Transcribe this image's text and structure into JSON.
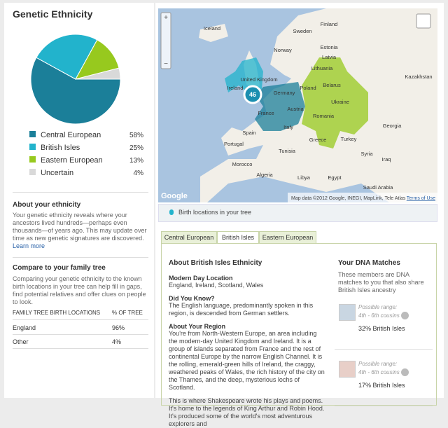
{
  "chart_data": {
    "type": "pie",
    "title": "Genetic Ethnicity",
    "categories": [
      "Central European",
      "British Isles",
      "Eastern European",
      "Uncertain"
    ],
    "values": [
      58,
      25,
      13,
      4
    ],
    "value_labels": [
      "58%",
      "25%",
      "13%",
      "4%"
    ],
    "colors": [
      "#1b7f99",
      "#22b3cc",
      "#97c91e",
      "#d9d9d9"
    ]
  },
  "about": {
    "title": "About your ethnicity",
    "text": "Your genetic ethnicity reveals where your ancestors lived hundreds—perhaps even thousands—of years ago. This may update over time as new genetic signatures are discovered.",
    "link": "Learn more"
  },
  "compare": {
    "title": "Compare to your family tree",
    "text": "Comparing your genetic ethnicity to the known birth locations in your tree can help fill in gaps, find potential relatives and offer clues on people to look.",
    "table": {
      "header": [
        "FAMILY TREE BIRTH LOCATIONS",
        "% OF TREE"
      ],
      "rows": [
        [
          "England",
          "96%"
        ],
        [
          "Other",
          "4%"
        ]
      ]
    }
  },
  "map": {
    "labels": [
      "Iceland",
      "Sweden",
      "Finland",
      "Norway",
      "Estonia",
      "Latvia",
      "Lithuania",
      "United Kingdom",
      "Ireland",
      "Germany",
      "Poland",
      "Belarus",
      "Ukraine",
      "France",
      "Austria",
      "Romania",
      "Italy",
      "Spain",
      "Portugal",
      "Greece",
      "Turkey",
      "Morocco",
      "Algeria",
      "Tunisia",
      "Libya",
      "Egypt",
      "Syria",
      "Iraq",
      "Kazakhstan",
      "Georgia",
      "Saudi Arabia"
    ],
    "marker": "46",
    "logo": "Google",
    "attribution": "Map data ©2012 Google, INEGI, MapLink, Tele Atlas",
    "terms": "Terms of Use",
    "caption": "Birth locations in your tree"
  },
  "tabs": [
    "Central European",
    "British Isles",
    "Eastern European"
  ],
  "detail": {
    "title": "About British Isles Ethnicity",
    "sections": [
      {
        "heading": "Modern Day Location",
        "text": "England, Ireland, Scotland, Wales"
      },
      {
        "heading": "Did You Know?",
        "text": "The English language, predominantly spoken in this region, is descended from German settlers."
      },
      {
        "heading": "About Your Region",
        "text": "You're from North-Western Europe, an area including the modern-day United Kingdom and Ireland. It is a group of islands separated from France and the rest of continental Europe by the narrow English Channel. It is the rolling, emerald-green hills of Ireland, the craggy, weathered peaks of Wales, the rich history of the city on the Thames, and the deep, mysterious lochs of Scotland."
      }
    ],
    "more": "This is where Shakespeare wrote his plays and poems. It's home to the legends of King Arthur and Robin Hood. It's produced some of the world's most adventurous explorers and"
  },
  "matches": {
    "title": "Your DNA Matches",
    "text": "These members are DNA matches to you that also share British Isles ancestry",
    "items": [
      {
        "range_label": "Possible range:",
        "range": "4th - 6th cousins",
        "share": "32% British Isles"
      },
      {
        "range_label": "Possible range:",
        "range": "4th - 6th cousins",
        "share": "17% British Isles"
      }
    ]
  }
}
